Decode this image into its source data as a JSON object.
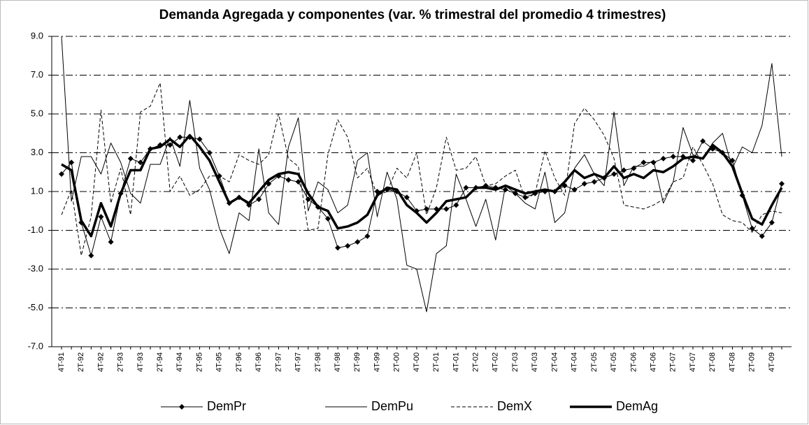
{
  "chart_data": {
    "type": "line",
    "title": "Demanda Agregada y componentes (var. % trimestral del promedio 4 trimestres)",
    "categories": [
      "4T-91",
      null,
      "2T-92",
      null,
      "4T-92",
      null,
      "2T-93",
      null,
      "4T-93",
      null,
      "2T-94",
      null,
      "4T-94",
      null,
      "2T-95",
      null,
      "4T-95",
      null,
      "2T-96",
      null,
      "4T-96",
      null,
      "2T-97",
      null,
      "4T-97",
      null,
      "2T-98",
      null,
      "4T-98",
      null,
      "2T-99",
      null,
      "4T-99",
      null,
      "2T-00",
      null,
      "4T-00",
      null,
      "2T-01",
      null,
      "4T-01",
      null,
      "2T-02",
      null,
      "4T-02",
      null,
      "2T-03",
      null,
      "4T-03",
      null,
      "2T-04",
      null,
      "4T-04",
      null,
      "2T-05",
      null,
      "4T-05",
      null,
      "2T-06",
      null,
      "4T-06",
      null,
      "2T-07",
      null,
      "4T-07",
      null,
      "2T-08",
      null,
      "4T-08",
      null,
      "2T-09",
      null,
      "4T-09",
      null
    ],
    "series": [
      {
        "name": "DemPr",
        "color": "#000000",
        "style": "solid",
        "linewidth": 1,
        "marker": "diamond",
        "values": [
          1.9,
          2.5,
          -0.6,
          -2.3,
          -0.3,
          -1.6,
          0.9,
          2.7,
          2.5,
          3.2,
          3.4,
          3.4,
          3.8,
          3.8,
          3.7,
          3.0,
          1.8,
          0.4,
          0.7,
          0.3,
          0.6,
          1.4,
          1.8,
          1.6,
          1.5,
          0.6,
          0.2,
          -0.4,
          -1.9,
          -1.8,
          -1.6,
          -1.3,
          1.0,
          1.1,
          1.0,
          0.7,
          0.0,
          0.1,
          0.1,
          0.1,
          0.3,
          1.2,
          1.2,
          1.3,
          1.2,
          1.1,
          0.9,
          0.7,
          0.9,
          1.0,
          1.0,
          1.3,
          1.1,
          1.4,
          1.5,
          1.7,
          1.9,
          2.1,
          2.2,
          2.5,
          2.5,
          2.7,
          2.8,
          2.8,
          2.6,
          3.6,
          3.2,
          3.0,
          2.6,
          0.8,
          -0.9,
          -1.3,
          -0.6,
          1.4
        ]
      },
      {
        "name": "DemPu",
        "color": "#000000",
        "style": "solid",
        "linewidth": 1,
        "values": [
          9.0,
          0.5,
          2.8,
          2.8,
          1.9,
          3.5,
          2.5,
          0.9,
          0.4,
          2.4,
          2.4,
          3.8,
          2.3,
          5.7,
          2.2,
          1.1,
          -0.9,
          -2.2,
          -0.1,
          -0.5,
          3.2,
          -0.1,
          -0.7,
          3.3,
          4.8,
          0.0,
          1.5,
          1.1,
          -0.1,
          0.3,
          2.6,
          3.0,
          -0.3,
          2.0,
          0.6,
          -2.8,
          -3.0,
          -5.2,
          -2.2,
          -1.8,
          1.9,
          0.6,
          -0.8,
          0.6,
          -1.5,
          1.3,
          0.9,
          0.4,
          0.1,
          2.0,
          -0.6,
          -0.1,
          2.2,
          2.9,
          1.9,
          1.3,
          5.1,
          1.3,
          2.3,
          2.3,
          2.6,
          0.4,
          1.5,
          4.3,
          2.9,
          2.7,
          3.5,
          4.0,
          2.2,
          3.3,
          3.0,
          4.4,
          7.6,
          2.8
        ]
      },
      {
        "name": "DemX",
        "color": "#000000",
        "style": "dashed",
        "linewidth": 1,
        "values": [
          -0.2,
          1.1,
          -2.3,
          -0.3,
          5.2,
          0.4,
          2.2,
          -0.2,
          5.1,
          5.4,
          6.6,
          1.0,
          1.8,
          0.8,
          1.1,
          1.8,
          1.8,
          1.5,
          2.9,
          2.6,
          2.4,
          2.9,
          5.0,
          2.7,
          2.3,
          -1.0,
          -0.9,
          2.9,
          4.7,
          3.8,
          1.7,
          2.2,
          0.8,
          1.0,
          2.2,
          1.7,
          3.0,
          -0.2,
          1.2,
          3.8,
          2.1,
          2.2,
          2.8,
          1.3,
          1.4,
          1.8,
          2.1,
          0.6,
          0.9,
          3.1,
          1.7,
          0.8,
          4.5,
          5.3,
          4.7,
          3.9,
          2.7,
          0.3,
          0.2,
          0.1,
          0.3,
          0.6,
          1.5,
          1.7,
          3.3,
          2.4,
          1.4,
          -0.2,
          -0.5,
          -0.6,
          -1.1,
          -0.2,
          0.0,
          -0.1
        ]
      },
      {
        "name": "DemAg",
        "color": "#000000",
        "style": "solid",
        "linewidth": 3.5,
        "values": [
          2.4,
          2.1,
          -0.5,
          -1.3,
          0.4,
          -0.8,
          0.9,
          2.1,
          2.1,
          3.2,
          3.3,
          3.7,
          3.3,
          3.9,
          3.3,
          2.6,
          1.5,
          0.4,
          0.7,
          0.4,
          1.0,
          1.6,
          1.9,
          2.0,
          1.9,
          0.9,
          0.2,
          0.0,
          -0.9,
          -0.8,
          -0.6,
          -0.2,
          0.8,
          1.2,
          1.1,
          0.3,
          -0.1,
          -0.6,
          -0.1,
          0.5,
          0.6,
          0.7,
          1.2,
          1.2,
          1.1,
          1.3,
          1.1,
          0.9,
          1.0,
          1.1,
          1.0,
          1.5,
          2.1,
          1.7,
          1.9,
          1.7,
          2.3,
          1.7,
          1.9,
          1.7,
          2.1,
          2.0,
          2.3,
          2.7,
          2.8,
          2.7,
          3.4,
          3.0,
          2.3,
          0.9,
          -0.4,
          -0.7,
          0.3,
          1.2
        ]
      }
    ],
    "ylim": [
      -7,
      9
    ],
    "yticks": [
      {
        "value": -7,
        "label": "-7.0"
      },
      {
        "value": -5,
        "label": "-5.0"
      },
      {
        "value": -3,
        "label": "-3.0"
      },
      {
        "value": -1,
        "label": "-1.0"
      },
      {
        "value": 1,
        "label": "1.0"
      },
      {
        "value": 3,
        "label": "3.0"
      },
      {
        "value": 5,
        "label": "5.0"
      },
      {
        "value": 7,
        "label": "7.0"
      },
      {
        "value": 9,
        "label": "9.0"
      }
    ],
    "grid": true,
    "legend": "bottom"
  }
}
